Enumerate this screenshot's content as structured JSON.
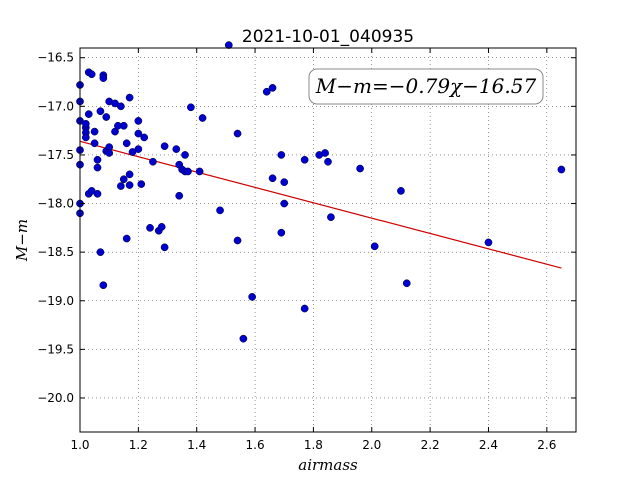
{
  "chart_data": {
    "type": "scatter",
    "title": "2021-10-01_040935",
    "xlabel": "airmass",
    "ylabel": "M−m",
    "xlim": [
      1.0,
      2.7
    ],
    "ylim": [
      -20.35,
      -16.4
    ],
    "y_inverted": true,
    "grid": true,
    "x_ticks": [
      1.0,
      1.2,
      1.4,
      1.6,
      1.8,
      2.0,
      2.2,
      2.4,
      2.6
    ],
    "x_tick_labels": [
      "1.0",
      "1.2",
      "1.4",
      "1.6",
      "1.8",
      "2.0",
      "2.2",
      "2.4",
      "2.6"
    ],
    "y_ticks": [
      -16.5,
      -17.0,
      -17.5,
      -18.0,
      -18.5,
      -19.0,
      -19.5,
      -20.0
    ],
    "y_tick_labels": [
      "−16.5",
      "−17.0",
      "−17.5",
      "−18.0",
      "−18.5",
      "−19.0",
      "−19.5",
      "−20.0"
    ],
    "annotation": "M−m=−0.79χ−16.57",
    "annotation_position": "top-right",
    "point_color": "#0000cc",
    "fit_color": "#cc0000",
    "fit_line": {
      "slope": -0.79,
      "intercept": -16.57,
      "x_range": [
        1.0,
        2.65
      ]
    },
    "points": [
      [
        1.0,
        -16.78
      ],
      [
        1.0,
        -16.95
      ],
      [
        1.0,
        -17.15
      ],
      [
        1.0,
        -17.45
      ],
      [
        1.0,
        -17.6
      ],
      [
        1.0,
        -18.0
      ],
      [
        1.0,
        -18.1
      ],
      [
        1.02,
        -17.22
      ],
      [
        1.02,
        -17.27
      ],
      [
        1.02,
        -17.32
      ],
      [
        1.02,
        -17.18
      ],
      [
        1.03,
        -17.08
      ],
      [
        1.03,
        -16.65
      ],
      [
        1.04,
        -16.67
      ],
      [
        1.03,
        -17.9
      ],
      [
        1.04,
        -17.87
      ],
      [
        1.05,
        -17.26
      ],
      [
        1.05,
        -17.38
      ],
      [
        1.06,
        -17.55
      ],
      [
        1.06,
        -17.63
      ],
      [
        1.06,
        -17.9
      ],
      [
        1.07,
        -17.05
      ],
      [
        1.08,
        -16.68
      ],
      [
        1.08,
        -16.71
      ],
      [
        1.09,
        -17.11
      ],
      [
        1.09,
        -17.46
      ],
      [
        1.1,
        -16.95
      ],
      [
        1.1,
        -17.42
      ],
      [
        1.1,
        -17.48
      ],
      [
        1.12,
        -16.97
      ],
      [
        1.12,
        -17.26
      ],
      [
        1.13,
        -17.2
      ],
      [
        1.14,
        -17.0
      ],
      [
        1.15,
        -17.2
      ],
      [
        1.14,
        -17.82
      ],
      [
        1.15,
        -17.75
      ],
      [
        1.16,
        -17.38
      ],
      [
        1.17,
        -16.91
      ],
      [
        1.17,
        -17.7
      ],
      [
        1.17,
        -17.81
      ],
      [
        1.18,
        -17.47
      ],
      [
        1.2,
        -17.15
      ],
      [
        1.2,
        -17.28
      ],
      [
        1.2,
        -17.44
      ],
      [
        1.21,
        -17.8
      ],
      [
        1.22,
        -17.32
      ],
      [
        1.24,
        -18.25
      ],
      [
        1.16,
        -18.36
      ],
      [
        1.07,
        -18.5
      ],
      [
        1.08,
        -18.84
      ],
      [
        1.25,
        -17.57
      ],
      [
        1.27,
        -18.28
      ],
      [
        1.28,
        -18.24
      ],
      [
        1.29,
        -17.41
      ],
      [
        1.29,
        -18.45
      ],
      [
        1.33,
        -17.44
      ],
      [
        1.34,
        -17.6
      ],
      [
        1.34,
        -17.92
      ],
      [
        1.35,
        -17.65
      ],
      [
        1.36,
        -17.5
      ],
      [
        1.36,
        -17.67
      ],
      [
        1.37,
        -17.67
      ],
      [
        1.38,
        -17.01
      ],
      [
        1.42,
        -17.12
      ],
      [
        1.41,
        -17.67
      ],
      [
        1.48,
        -18.07
      ],
      [
        1.51,
        -16.37
      ],
      [
        1.54,
        -17.28
      ],
      [
        1.54,
        -18.38
      ],
      [
        1.56,
        -19.39
      ],
      [
        1.59,
        -18.96
      ],
      [
        1.64,
        -16.85
      ],
      [
        1.66,
        -16.81
      ],
      [
        1.66,
        -17.74
      ],
      [
        1.69,
        -17.5
      ],
      [
        1.69,
        -18.3
      ],
      [
        1.7,
        -17.78
      ],
      [
        1.7,
        -18.0
      ],
      [
        1.77,
        -17.55
      ],
      [
        1.77,
        -19.08
      ],
      [
        1.82,
        -17.5
      ],
      [
        1.84,
        -17.48
      ],
      [
        1.85,
        -17.57
      ],
      [
        1.86,
        -18.14
      ],
      [
        1.96,
        -17.64
      ],
      [
        2.01,
        -18.44
      ],
      [
        2.1,
        -17.87
      ],
      [
        2.12,
        -18.82
      ],
      [
        2.4,
        -18.4
      ],
      [
        2.65,
        -17.65
      ]
    ]
  }
}
